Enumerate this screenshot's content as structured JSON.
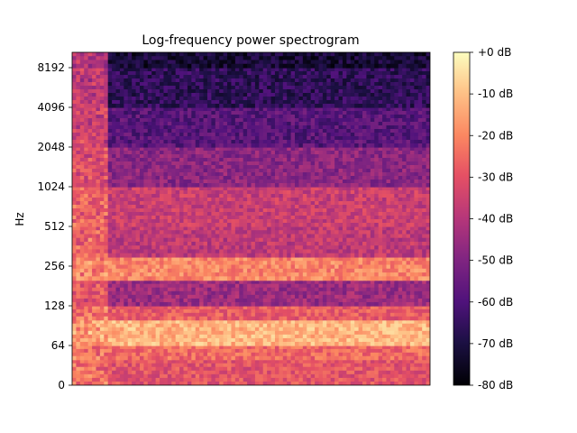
{
  "chart_data": {
    "type": "heatmap",
    "title": "Log-frequency power spectrogram",
    "xlabel": "",
    "ylabel": "Hz",
    "y_scale": "log2",
    "y_ticks": [
      {
        "label": "0",
        "value": 0
      },
      {
        "label": "64",
        "value": 64
      },
      {
        "label": "128",
        "value": 128
      },
      {
        "label": "256",
        "value": 256
      },
      {
        "label": "512",
        "value": 512
      },
      {
        "label": "1024",
        "value": 1024
      },
      {
        "label": "2048",
        "value": 2048
      },
      {
        "label": "4096",
        "value": 4096
      },
      {
        "label": "8192",
        "value": 8192
      }
    ],
    "x_ticks": [],
    "colormap": "magma",
    "colorbar": {
      "min": -80,
      "max": 0,
      "ticks": [
        "+0 dB",
        "-10 dB",
        "-20 dB",
        "-30 dB",
        "-40 dB",
        "-50 dB",
        "-60 dB",
        "-70 dB",
        "-80 dB"
      ],
      "tick_values": [
        0,
        -10,
        -20,
        -30,
        -40,
        -50,
        -60,
        -70,
        -80
      ]
    },
    "frequency_bands": [
      {
        "hz_low": 0,
        "hz_high": 30,
        "db": -45
      },
      {
        "hz_low": 30,
        "hz_high": 50,
        "db": -30
      },
      {
        "hz_low": 50,
        "hz_high": 64,
        "db": -25
      },
      {
        "hz_low": 64,
        "hz_high": 100,
        "db": -12
      },
      {
        "hz_low": 100,
        "hz_high": 128,
        "db": -28
      },
      {
        "hz_low": 128,
        "hz_high": 200,
        "db": -45
      },
      {
        "hz_low": 200,
        "hz_high": 300,
        "db": -20
      },
      {
        "hz_low": 300,
        "hz_high": 512,
        "db": -38
      },
      {
        "hz_low": 512,
        "hz_high": 1024,
        "db": -36
      },
      {
        "hz_low": 1024,
        "hz_high": 2048,
        "db": -48
      },
      {
        "hz_low": 2048,
        "hz_high": 4096,
        "db": -58
      },
      {
        "hz_low": 4096,
        "hz_high": 8192,
        "db": -66
      },
      {
        "hz_low": 8192,
        "hz_high": 11025,
        "db": -72
      }
    ],
    "onset_region": {
      "time_fraction": 0.1,
      "db": -20
    },
    "grid": false,
    "legend": "colorbar-right"
  }
}
